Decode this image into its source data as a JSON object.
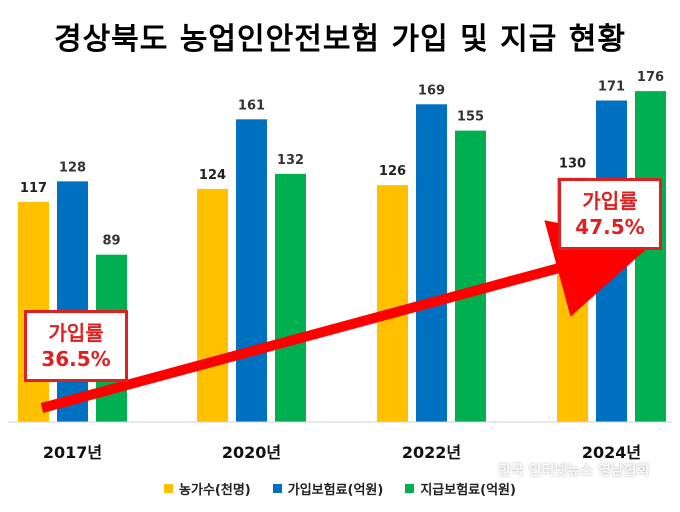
{
  "chart_data": {
    "type": "bar",
    "title": "경상북도 농업인안전보험 가입 및 지급 현황",
    "categories": [
      "2017년",
      "2020년",
      "2022년",
      "2024년"
    ],
    "series": [
      {
        "name": "농가수(천명)",
        "values": [
          117,
          124,
          126,
          130
        ],
        "color": "#FFC000"
      },
      {
        "name": "가입보험료(억원)",
        "values": [
          128,
          161,
          169,
          171
        ],
        "color": "#0070C0"
      },
      {
        "name": "지급보험료(억원)",
        "values": [
          89,
          132,
          155,
          176
        ],
        "color": "#00B050"
      }
    ],
    "legend_position": "bottom",
    "grid": false,
    "annotations": [
      {
        "label": "가입률",
        "value": "36.5%"
      },
      {
        "label": "가입률",
        "value": "47.5%"
      }
    ],
    "arrow_color": "#FF0000"
  },
  "watermark": "한국 인터넷뉴스 영남협회"
}
